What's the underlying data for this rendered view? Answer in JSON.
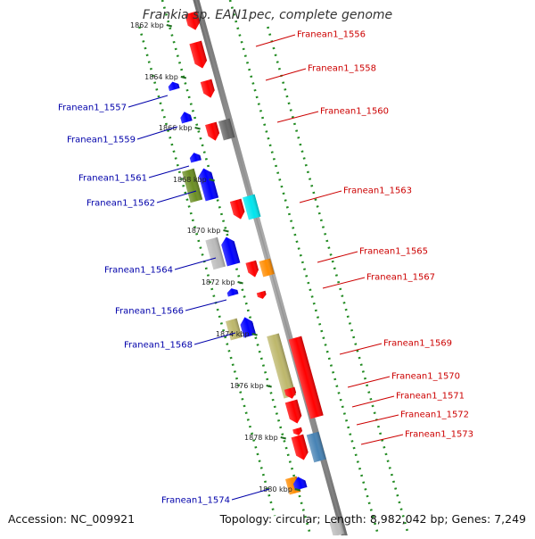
{
  "title": "Frankia sp. EAN1pec, complete genome",
  "accession": "Accession: NC_009921",
  "summary": "Topology: circular; Length: 8,982,042 bp; Genes: 7,249",
  "colors": {
    "backbone": "#8c8c8c",
    "tick_dots": "#228b22",
    "forward_label": "#cc0000",
    "reverse_label": "#0000aa"
  },
  "kbp_ticks": [
    {
      "kbp": 1862,
      "label": "1862 kbp"
    },
    {
      "kbp": 1864,
      "label": "1864 kbp"
    },
    {
      "kbp": 1866,
      "label": "1866 kbp"
    },
    {
      "kbp": 1868,
      "label": "1868 kbp"
    },
    {
      "kbp": 1870,
      "label": "1870 kbp"
    },
    {
      "kbp": 1872,
      "label": "1872 kbp"
    },
    {
      "kbp": 1874,
      "label": "1874 kbp"
    },
    {
      "kbp": 1876,
      "label": "1876 kbp"
    },
    {
      "kbp": 1878,
      "label": "1878 kbp"
    },
    {
      "kbp": 1880,
      "label": "1880 kbp"
    }
  ],
  "gene_labels": [
    {
      "name": "Franean1_1556",
      "strand": "forward"
    },
    {
      "name": "Franean1_1557",
      "strand": "reverse"
    },
    {
      "name": "Franean1_1558",
      "strand": "forward"
    },
    {
      "name": "Franean1_1559",
      "strand": "reverse"
    },
    {
      "name": "Franean1_1560",
      "strand": "forward"
    },
    {
      "name": "Franean1_1561",
      "strand": "reverse"
    },
    {
      "name": "Franean1_1562",
      "strand": "reverse"
    },
    {
      "name": "Franean1_1563",
      "strand": "forward"
    },
    {
      "name": "Franean1_1564",
      "strand": "reverse"
    },
    {
      "name": "Franean1_1565",
      "strand": "forward"
    },
    {
      "name": "Franean1_1566",
      "strand": "reverse"
    },
    {
      "name": "Franean1_1567",
      "strand": "forward"
    },
    {
      "name": "Franean1_1568",
      "strand": "reverse"
    },
    {
      "name": "Franean1_1569",
      "strand": "forward"
    },
    {
      "name": "Franean1_1570",
      "strand": "forward"
    },
    {
      "name": "Franean1_1571",
      "strand": "forward"
    },
    {
      "name": "Franean1_1572",
      "strand": "forward"
    },
    {
      "name": "Franean1_1573",
      "strand": "forward"
    },
    {
      "name": "Franean1_1574",
      "strand": "reverse"
    }
  ],
  "gene_blocks": [
    {
      "color": "#ff0000",
      "dir": "down"
    },
    {
      "color": "#ff0000",
      "dir": "down"
    },
    {
      "color": "#ff0000",
      "dir": "down"
    },
    {
      "color": "#ff0000",
      "dir": "down"
    },
    {
      "color": "#666666",
      "dir": "none"
    },
    {
      "color": "#ff0000",
      "dir": "down"
    },
    {
      "color": "#00e5ee",
      "dir": "none"
    },
    {
      "color": "#ff0000",
      "dir": "down"
    },
    {
      "color": "#ff8c00",
      "dir": "none"
    },
    {
      "color": "#ff0000",
      "dir": "down"
    },
    {
      "color": "#ff0000",
      "dir": "none"
    },
    {
      "color": "#bdb76b",
      "dir": "none"
    },
    {
      "color": "#ff0000",
      "dir": "down"
    },
    {
      "color": "#ff0000",
      "dir": "down"
    },
    {
      "color": "#ff0000",
      "dir": "down"
    },
    {
      "color": "#ff0000",
      "dir": "down"
    },
    {
      "color": "#4682b4",
      "dir": "none"
    },
    {
      "color": "#bbbbbb",
      "dir": "none"
    },
    {
      "color": "#0000ff",
      "dir": "up"
    },
    {
      "color": "#0000ff",
      "dir": "up"
    },
    {
      "color": "#0000ff",
      "dir": "up"
    },
    {
      "color": "#6b8e23",
      "dir": "none"
    },
    {
      "color": "#0000ff",
      "dir": "up"
    },
    {
      "color": "#bbbbbb",
      "dir": "none"
    },
    {
      "color": "#0000ff",
      "dir": "up"
    },
    {
      "color": "#0000ff",
      "dir": "up"
    },
    {
      "color": "#bdb76b",
      "dir": "none"
    },
    {
      "color": "#0000ff",
      "dir": "up"
    },
    {
      "color": "#ff8c00",
      "dir": "none"
    },
    {
      "color": "#0000ff",
      "dir": "up"
    }
  ]
}
